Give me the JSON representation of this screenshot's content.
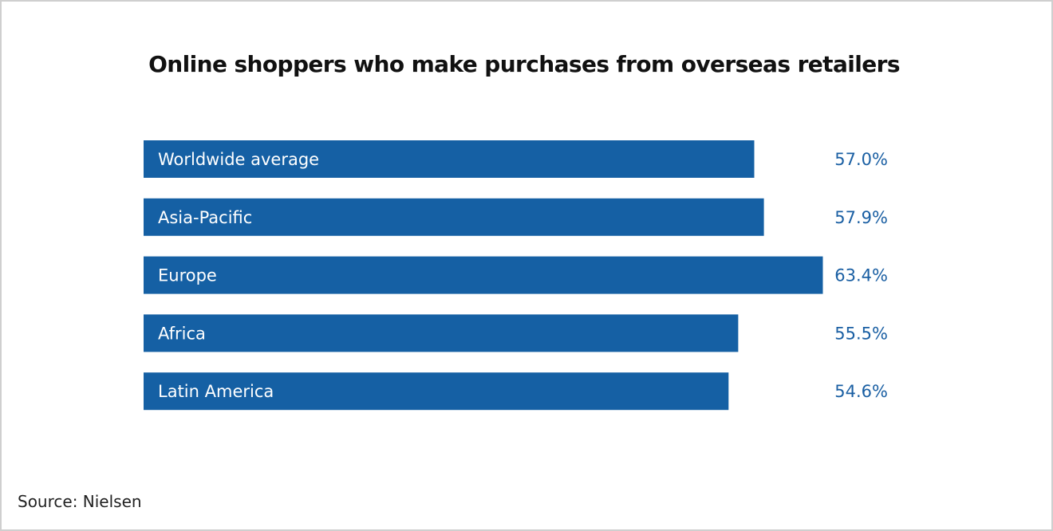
{
  "colors": {
    "bar": "#1560a4",
    "value_text": "#1a5fa3",
    "title_text": "#111111",
    "background": "#ffffff"
  },
  "source_text": "Source: Nielsen",
  "chart_data": {
    "type": "bar",
    "orientation": "horizontal",
    "title": "Online shoppers who make purchases from overseas retailers",
    "xlabel": "",
    "ylabel": "",
    "categories": [
      "Worldwide average",
      "Asia-Pacific",
      "Europe",
      "Africa",
      "Latin America"
    ],
    "values": [
      57.0,
      57.9,
      63.4,
      55.5,
      54.6
    ],
    "value_labels": [
      "57.0%",
      "57.9%",
      "63.4%",
      "55.5%",
      "54.6%"
    ],
    "unit": "%",
    "grid": false,
    "legend": "none"
  }
}
